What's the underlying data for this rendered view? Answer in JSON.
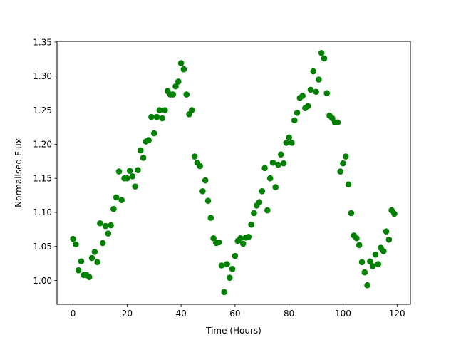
{
  "chart_data": {
    "type": "scatter",
    "title": "",
    "xlabel": "Time (Hours)",
    "ylabel": "Normalised Flux",
    "xlim": [
      -5.95,
      124.95
    ],
    "ylim": [
      0.965,
      1.351
    ],
    "xticks": [
      0,
      20,
      40,
      60,
      80,
      100,
      120
    ],
    "yticks": [
      1.0,
      1.05,
      1.1,
      1.15,
      1.2,
      1.25,
      1.3,
      1.35
    ],
    "xtick_labels": [
      "0",
      "20",
      "40",
      "60",
      "80",
      "100",
      "120"
    ],
    "ytick_labels": [
      "1.00",
      "1.05",
      "1.10",
      "1.15",
      "1.20",
      "1.25",
      "1.30",
      "1.35"
    ],
    "grid": false,
    "marker_color": "#008000",
    "series": [
      {
        "x": [
          0,
          1,
          2,
          3,
          4,
          5,
          6,
          7,
          8,
          9,
          10,
          11,
          12,
          13,
          14,
          15,
          16,
          17,
          18,
          19,
          20,
          21,
          22,
          23,
          24,
          25,
          26,
          27,
          28,
          29,
          30,
          31,
          32,
          33,
          34,
          35,
          36,
          37,
          38,
          39,
          40,
          41,
          42,
          43,
          44,
          45,
          46,
          47,
          48,
          49,
          50,
          51,
          52,
          53,
          54,
          55,
          56,
          57,
          58,
          59,
          60,
          61,
          62,
          63,
          64,
          65,
          66,
          67,
          68,
          69,
          70,
          71,
          72,
          73,
          74,
          75,
          76,
          77,
          78,
          79,
          80,
          81,
          82,
          83,
          84,
          85,
          86,
          87,
          88,
          89,
          90,
          91,
          92,
          93,
          94,
          95,
          96,
          97,
          98,
          99,
          100,
          101,
          102,
          103,
          104,
          105,
          106,
          107,
          108,
          109,
          110,
          111,
          112,
          113,
          114,
          115,
          116,
          117,
          118,
          119
        ],
        "y": [
          1.061,
          1.053,
          1.015,
          1.028,
          1.008,
          1.008,
          1.005,
          1.033,
          1.042,
          1.027,
          1.084,
          1.055,
          1.08,
          1.069,
          1.081,
          1.105,
          1.122,
          1.16,
          1.118,
          1.15,
          1.15,
          1.161,
          1.153,
          1.138,
          1.162,
          1.191,
          1.18,
          1.204,
          1.206,
          1.24,
          1.216,
          1.24,
          1.25,
          1.238,
          1.25,
          1.278,
          1.273,
          1.273,
          1.285,
          1.292,
          1.319,
          1.31,
          1.273,
          1.244,
          1.25,
          1.182,
          1.173,
          1.168,
          1.131,
          1.147,
          1.117,
          1.092,
          1.062,
          1.055,
          1.056,
          1.022,
          0.983,
          1.024,
          1.004,
          1.017,
          1.036,
          1.058,
          1.062,
          1.054,
          1.063,
          1.064,
          1.082,
          1.099,
          1.11,
          1.115,
          1.131,
          1.165,
          1.103,
          1.15,
          1.173,
          1.137,
          1.17,
          1.185,
          1.172,
          1.202,
          1.21,
          1.202,
          1.235,
          1.246,
          1.268,
          1.271,
          1.253,
          1.256,
          1.28,
          1.307,
          1.277,
          1.295,
          1.334,
          1.326,
          1.275,
          1.242,
          1.238,
          1.232,
          1.232,
          1.16,
          1.172,
          1.182,
          1.141,
          1.099,
          1.066,
          1.062,
          1.052,
          1.027,
          1.012,
          0.993,
          1.028,
          1.021,
          1.038,
          1.024,
          1.048,
          1.043,
          1.072,
          1.06,
          1.103,
          1.098
        ]
      }
    ]
  }
}
